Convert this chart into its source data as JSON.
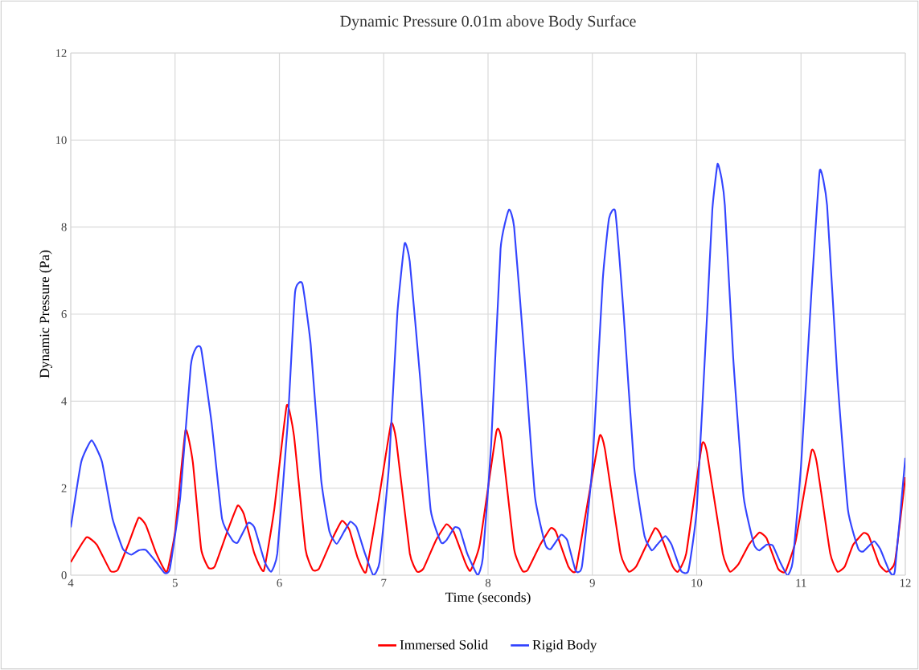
{
  "chart_data": {
    "type": "line",
    "title": "Dynamic Pressure 0.01m above Body Surface",
    "xlabel": "Time (seconds)",
    "ylabel": "Dynamic Pressure (Pa)",
    "xlim": [
      4,
      12
    ],
    "ylim": [
      0,
      12
    ],
    "xticks": [
      4,
      5,
      6,
      7,
      8,
      9,
      10,
      11,
      12
    ],
    "yticks": [
      0,
      2,
      4,
      6,
      8,
      10,
      12
    ],
    "grid": true,
    "legend": "bottom",
    "marker": "none",
    "line_style": "solid",
    "series": [
      {
        "name": "Immersed Solid",
        "color": "#ff0000",
        "x": [
          4.0,
          4.15,
          4.25,
          4.38,
          4.45,
          4.55,
          4.65,
          4.72,
          4.82,
          4.92,
          5.0,
          5.1,
          5.17,
          5.25,
          5.32,
          5.38,
          5.5,
          5.6,
          5.66,
          5.76,
          5.85,
          5.95,
          6.07,
          6.14,
          6.25,
          6.32,
          6.38,
          6.5,
          6.6,
          6.67,
          6.75,
          6.83,
          6.95,
          7.07,
          7.12,
          7.25,
          7.32,
          7.38,
          7.5,
          7.6,
          7.67,
          7.78,
          7.83,
          7.92,
          8.08,
          8.13,
          8.25,
          8.33,
          8.38,
          8.5,
          8.6,
          8.65,
          8.77,
          8.84,
          8.95,
          9.07,
          9.12,
          9.27,
          9.35,
          9.42,
          9.5,
          9.6,
          9.65,
          9.77,
          9.82,
          9.9,
          10.05,
          10.1,
          10.25,
          10.32,
          10.4,
          10.5,
          10.6,
          10.67,
          10.78,
          10.85,
          10.95,
          11.1,
          11.15,
          11.28,
          11.35,
          11.42,
          11.5,
          11.6,
          11.65,
          11.75,
          11.82,
          11.9,
          12.0
        ],
        "values": [
          0.3,
          0.87,
          0.7,
          0.1,
          0.12,
          0.7,
          1.32,
          1.15,
          0.5,
          0.07,
          1.0,
          3.33,
          2.6,
          0.6,
          0.17,
          0.2,
          1.0,
          1.6,
          1.4,
          0.5,
          0.1,
          1.5,
          3.9,
          3.2,
          0.6,
          0.12,
          0.15,
          0.8,
          1.25,
          1.05,
          0.4,
          0.07,
          1.7,
          3.48,
          3.1,
          0.5,
          0.08,
          0.15,
          0.8,
          1.17,
          1.0,
          0.3,
          0.1,
          0.7,
          3.3,
          3.1,
          0.6,
          0.1,
          0.12,
          0.7,
          1.08,
          1.0,
          0.2,
          0.1,
          1.6,
          3.2,
          2.9,
          0.5,
          0.08,
          0.2,
          0.6,
          1.08,
          0.95,
          0.2,
          0.08,
          0.5,
          3.0,
          2.8,
          0.5,
          0.08,
          0.25,
          0.7,
          0.98,
          0.85,
          0.15,
          0.08,
          0.8,
          2.85,
          2.6,
          0.5,
          0.08,
          0.2,
          0.7,
          0.97,
          0.9,
          0.25,
          0.08,
          0.3,
          2.25
        ]
      },
      {
        "name": "Rigid Body",
        "color": "#3344ff",
        "x": [
          4.0,
          4.1,
          4.2,
          4.3,
          4.4,
          4.5,
          4.58,
          4.65,
          4.72,
          4.82,
          4.9,
          4.95,
          5.05,
          5.15,
          5.2,
          5.25,
          5.35,
          5.45,
          5.55,
          5.6,
          5.7,
          5.76,
          5.86,
          5.92,
          5.98,
          6.08,
          6.15,
          6.22,
          6.3,
          6.4,
          6.48,
          6.55,
          6.62,
          6.68,
          6.74,
          6.82,
          6.9,
          6.96,
          7.05,
          7.13,
          7.2,
          7.25,
          7.35,
          7.45,
          7.55,
          7.6,
          7.68,
          7.73,
          7.8,
          7.9,
          7.95,
          8.03,
          8.12,
          8.2,
          8.25,
          8.35,
          8.45,
          8.55,
          8.6,
          8.7,
          8.76,
          8.84,
          8.9,
          9.0,
          9.1,
          9.16,
          9.22,
          9.3,
          9.4,
          9.5,
          9.57,
          9.62,
          9.7,
          9.76,
          9.85,
          9.92,
          10.0,
          10.1,
          10.15,
          10.2,
          10.24,
          10.27,
          10.35,
          10.45,
          10.55,
          10.6,
          10.67,
          10.73,
          10.8,
          10.87,
          10.92,
          11.0,
          11.1,
          11.18,
          11.25,
          11.35,
          11.45,
          11.55,
          11.6,
          11.7,
          11.76,
          11.85,
          11.9,
          12.0
        ],
        "values": [
          1.1,
          2.6,
          3.1,
          2.6,
          1.3,
          0.6,
          0.47,
          0.57,
          0.58,
          0.3,
          0.05,
          0.15,
          1.8,
          4.8,
          5.22,
          5.2,
          3.5,
          1.3,
          0.8,
          0.75,
          1.2,
          1.1,
          0.3,
          0.08,
          0.5,
          3.5,
          6.5,
          6.7,
          5.3,
          2.2,
          1.0,
          0.72,
          1.0,
          1.23,
          1.1,
          0.5,
          0.0,
          0.3,
          2.5,
          6.0,
          7.62,
          7.2,
          4.5,
          1.5,
          0.75,
          0.8,
          1.1,
          1.05,
          0.5,
          0.0,
          0.4,
          3.0,
          7.5,
          8.4,
          8.0,
          5.0,
          1.8,
          0.7,
          0.6,
          0.93,
          0.8,
          0.1,
          0.2,
          2.5,
          6.8,
          8.2,
          8.35,
          6.0,
          2.5,
          0.9,
          0.57,
          0.7,
          0.9,
          0.7,
          0.1,
          0.1,
          1.5,
          6.0,
          8.4,
          9.45,
          9.1,
          8.5,
          5.0,
          1.8,
          0.7,
          0.57,
          0.7,
          0.68,
          0.3,
          0.0,
          0.3,
          2.5,
          6.5,
          9.3,
          8.5,
          4.5,
          1.5,
          0.6,
          0.55,
          0.78,
          0.6,
          0.08,
          0.1,
          2.7
        ]
      }
    ]
  }
}
